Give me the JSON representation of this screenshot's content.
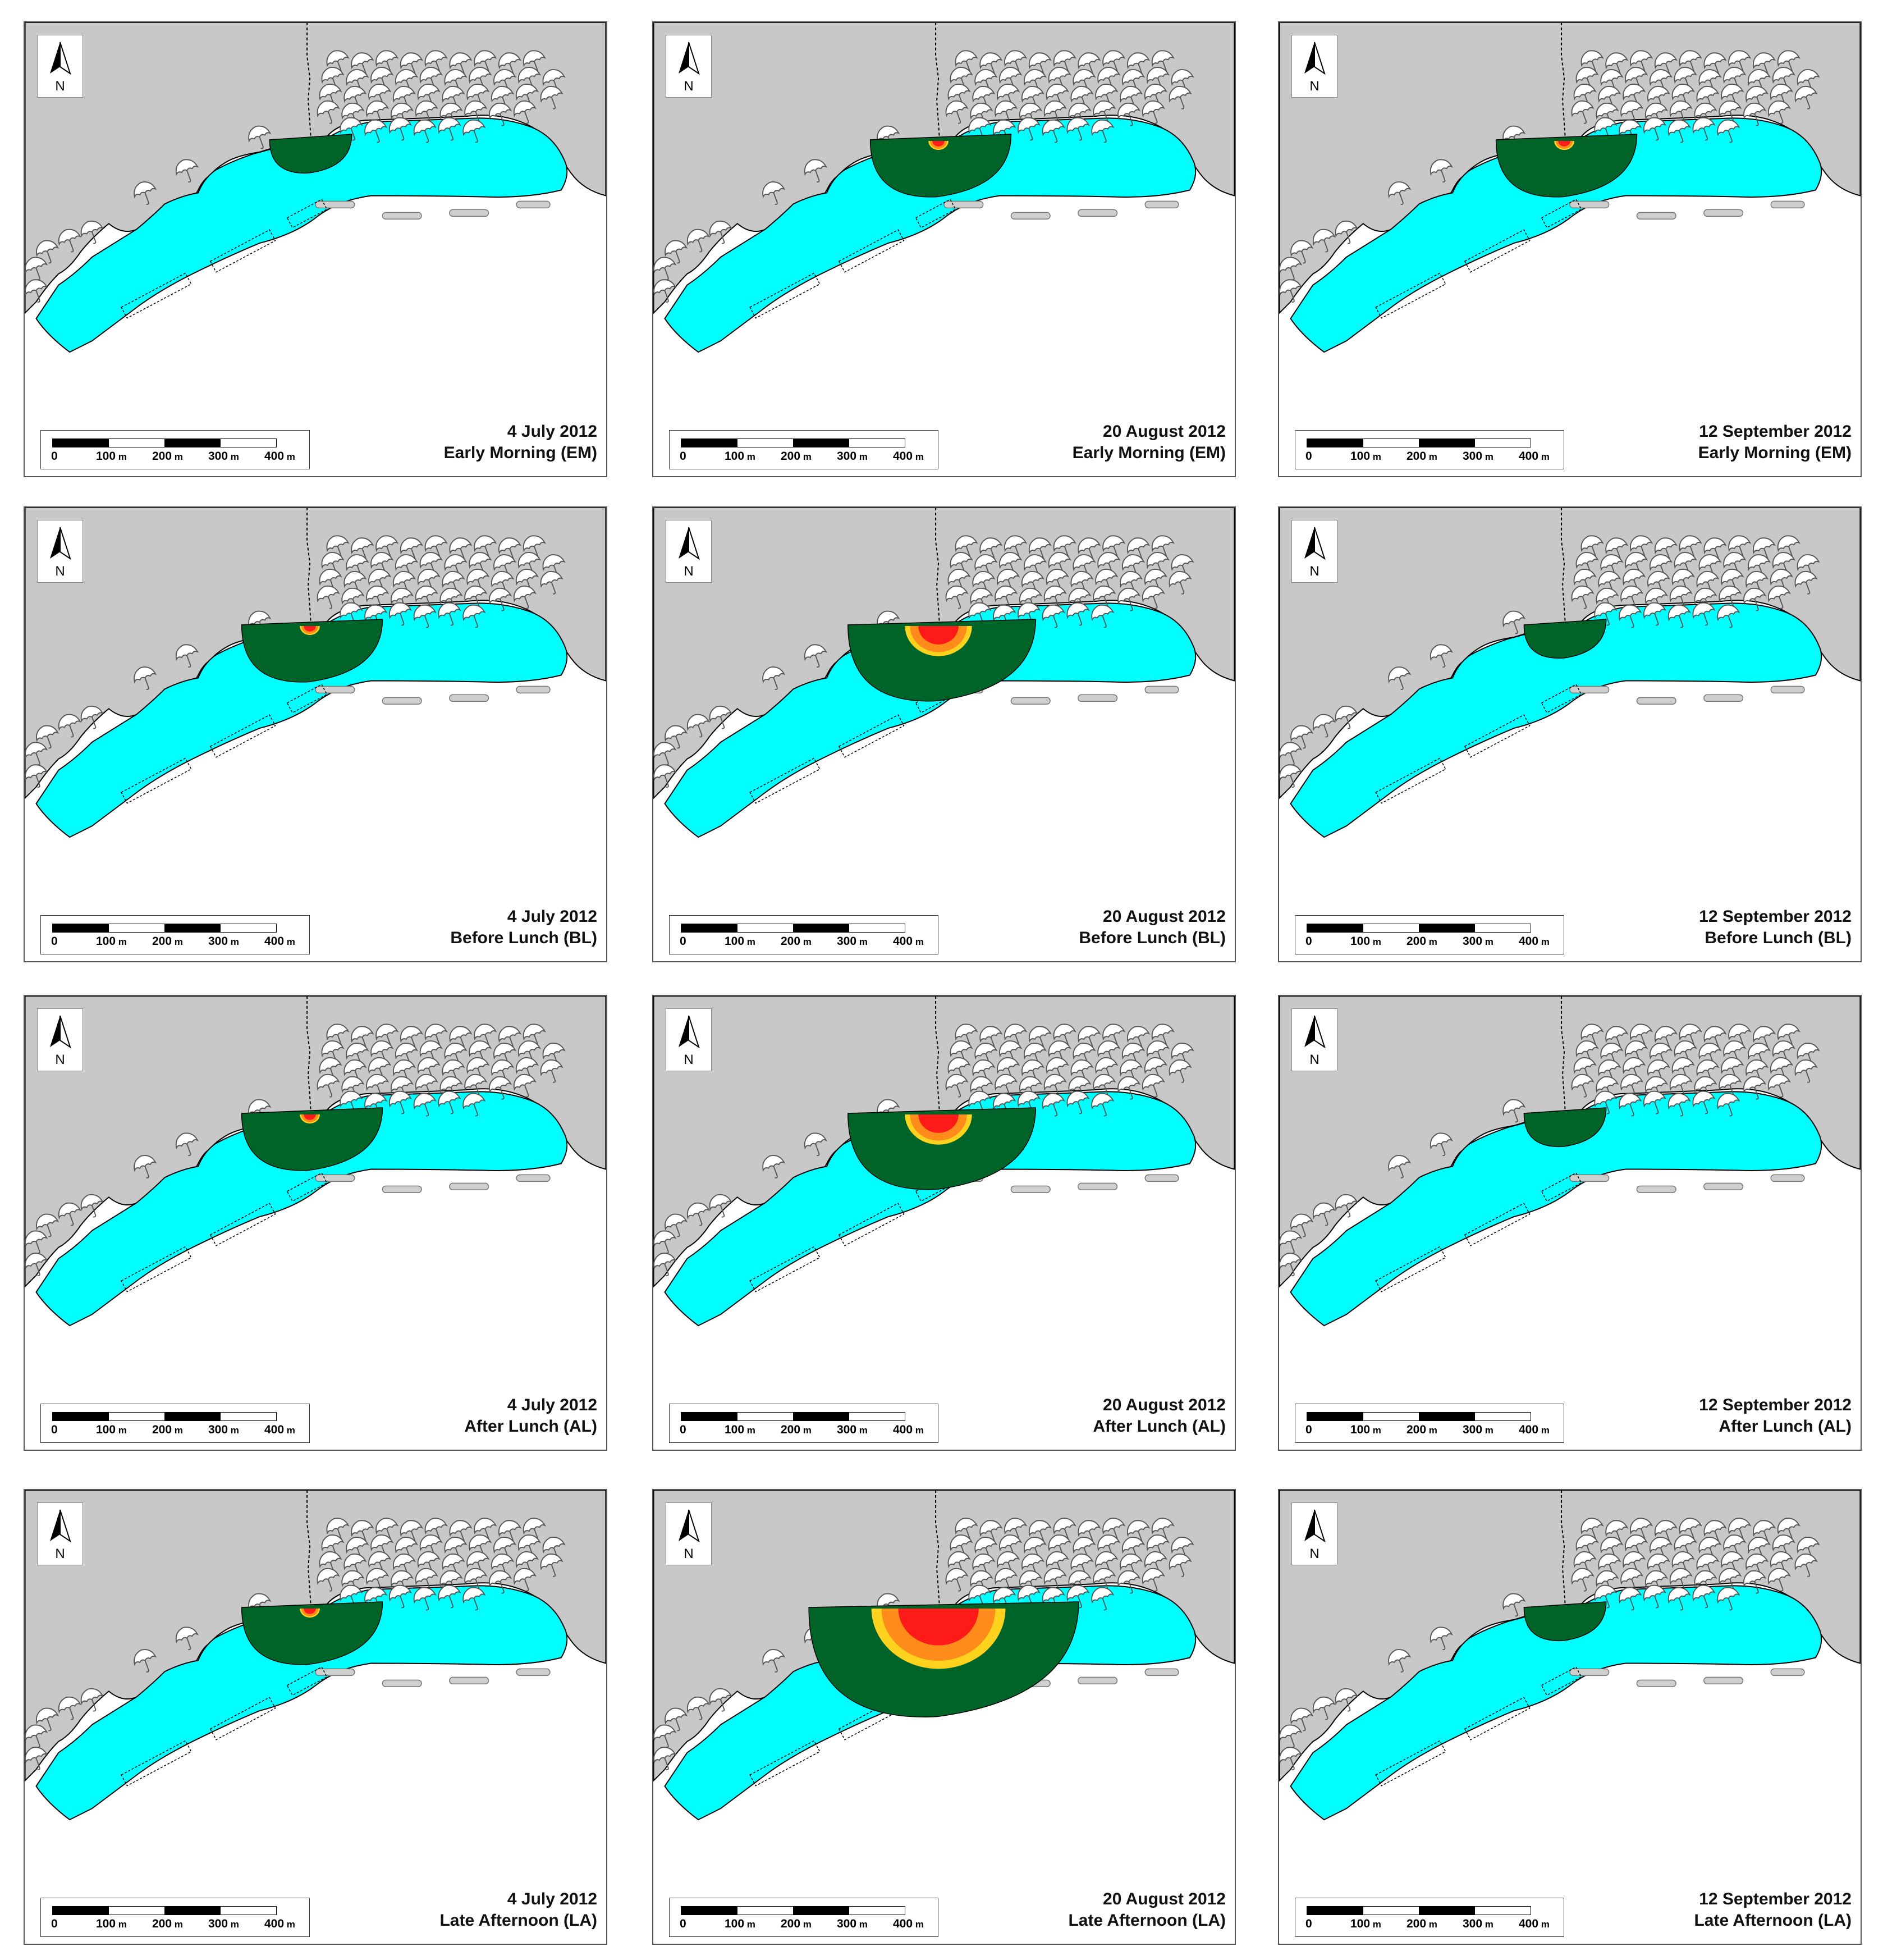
{
  "north_label": "N",
  "scale_ticks": [
    "0",
    "100",
    "200",
    "300",
    "400"
  ],
  "scale_unit": "m",
  "colors": {
    "land": "#c8c8c8",
    "sea": "#00ffff",
    "zone_low": "#006428",
    "zone_mid": "#ff8c1a",
    "zone_high": "#ff1a1a",
    "zone_edge": "#ffd21e",
    "breakwater": "#cfcfcf"
  },
  "panels": [
    {
      "date": "4 July 2012",
      "period": "Early Morning (EM)",
      "plume_level": 1
    },
    {
      "date": "20 August 2012",
      "period": "Early Morning (EM)",
      "plume_level": 2
    },
    {
      "date": "12 September 2012",
      "period": "Early Morning (EM)",
      "plume_level": 2
    },
    {
      "date": "4 July 2012",
      "period": "Before Lunch (BL)",
      "plume_level": 2
    },
    {
      "date": "20 August 2012",
      "period": "Before Lunch (BL)",
      "plume_level": 3
    },
    {
      "date": "12 September 2012",
      "period": "Before Lunch (BL)",
      "plume_level": 1
    },
    {
      "date": "4 July 2012",
      "period": "After Lunch (AL)",
      "plume_level": 2
    },
    {
      "date": "20 August 2012",
      "period": "After Lunch (AL)",
      "plume_level": 3
    },
    {
      "date": "12 September 2012",
      "period": "After Lunch (AL)",
      "plume_level": 1
    },
    {
      "date": "4 July 2012",
      "period": "Late Afternoon (LA)",
      "plume_level": 2
    },
    {
      "date": "20 August 2012",
      "period": "Late Afternoon (LA)",
      "plume_level": 4
    },
    {
      "date": "12 September 2012",
      "period": "Late Afternoon (LA)",
      "plume_level": 1
    }
  ]
}
